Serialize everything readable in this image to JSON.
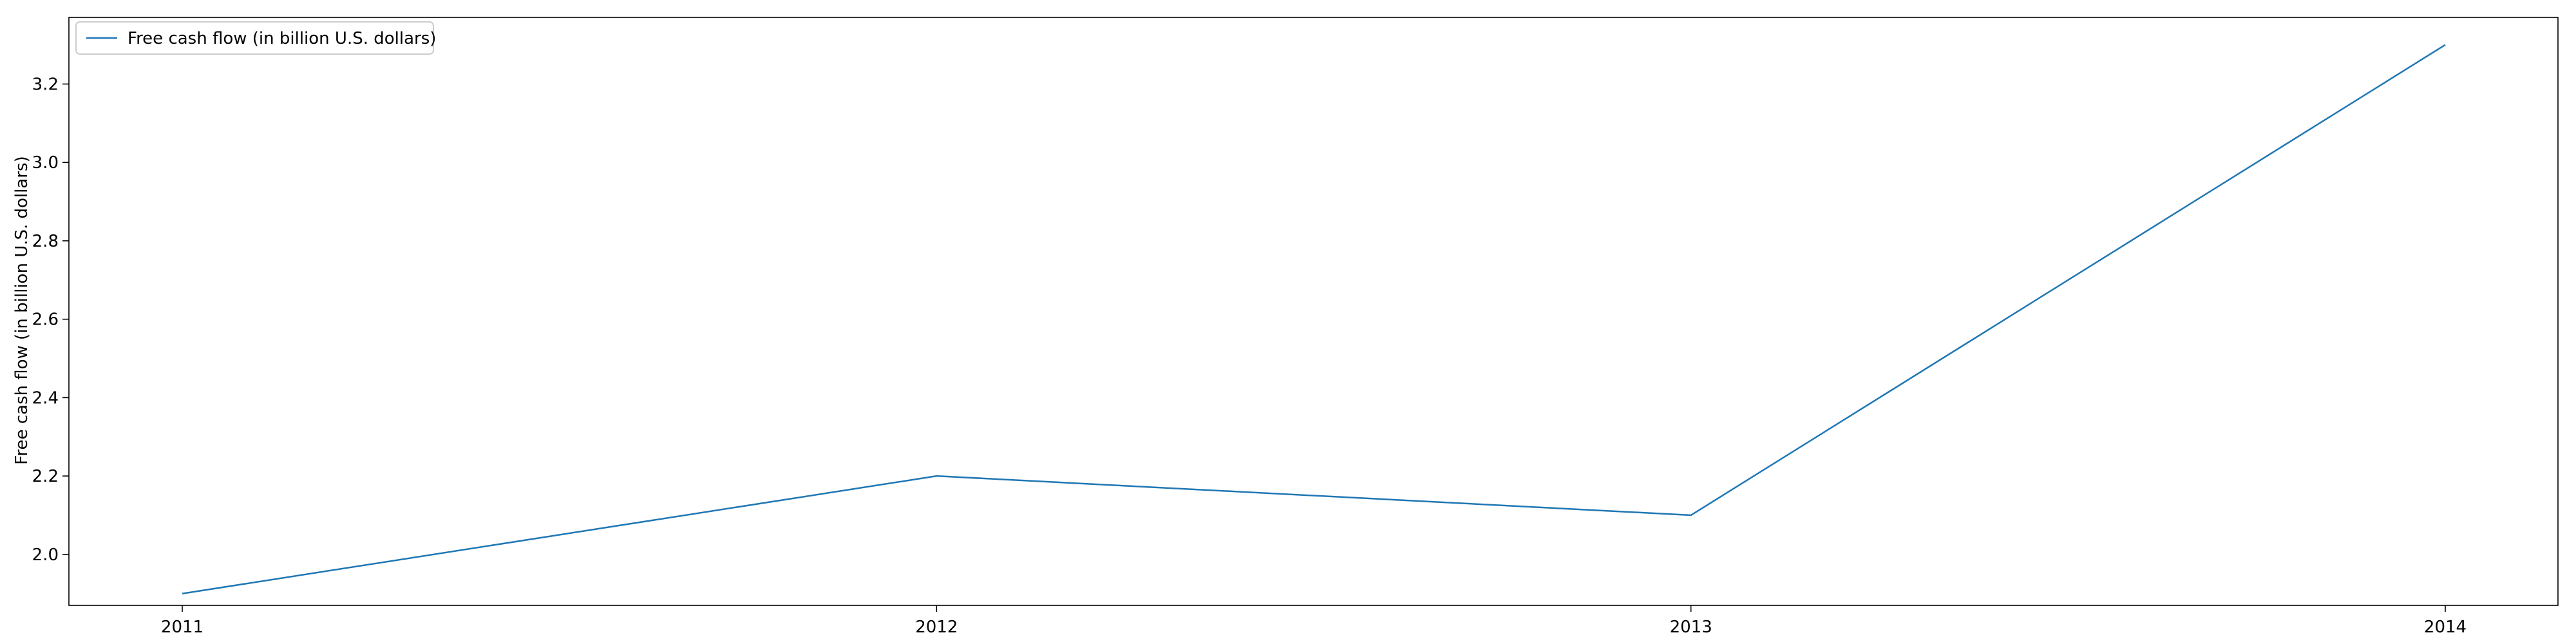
{
  "chart_data": {
    "type": "line",
    "title": "",
    "xlabel": "",
    "ylabel": "Free cash flow (in billion U.S. dollars)",
    "x": [
      "2011",
      "2012",
      "2013",
      "2014"
    ],
    "series": [
      {
        "name": "Free cash flow (in billion U.S. dollars)",
        "values": [
          1.9,
          2.2,
          2.1,
          3.3
        ],
        "color": "#1f77b4"
      }
    ],
    "ylim": [
      1.87,
      3.37
    ],
    "yticks": [
      2.0,
      2.2,
      2.4,
      2.6,
      2.8,
      3.0,
      3.2
    ],
    "ytick_labels": [
      "2.0",
      "2.2",
      "2.4",
      "2.6",
      "2.8",
      "3.0",
      "3.2"
    ],
    "grid": false,
    "legend_position": "top-left"
  }
}
